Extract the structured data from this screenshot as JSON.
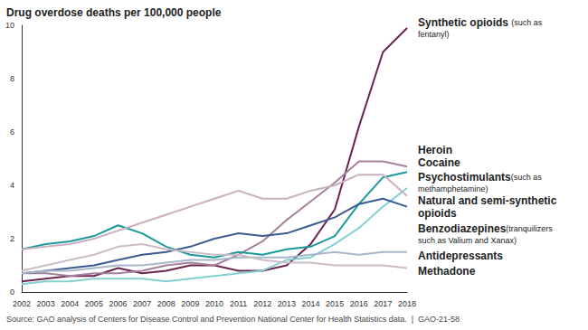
{
  "chart_data": {
    "type": "line",
    "title": "Drug overdose deaths per 100,000 people",
    "source": "Source: GAO analysis of Centers for Disease Control and Prevention National Center for Health Statistics data.  |  GAO-21-58",
    "categories": [
      "2002",
      "2003",
      "2004",
      "2005",
      "2006",
      "2007",
      "2008",
      "2009",
      "2010",
      "2011",
      "2012",
      "2013",
      "2014",
      "2015",
      "2016",
      "2017",
      "2018"
    ],
    "ylim": [
      0,
      10
    ],
    "yticks": [
      0,
      2,
      4,
      6,
      8,
      10
    ],
    "grid": false,
    "series": [
      {
        "name": "Synthetic opioids",
        "note": "(such as fentanyl)",
        "color": "#6b2350",
        "values": [
          0.4,
          0.5,
          0.6,
          0.6,
          0.9,
          0.7,
          0.8,
          1.0,
          1.0,
          0.8,
          0.8,
          1.0,
          1.8,
          3.1,
          6.2,
          9.0,
          9.9
        ]
      },
      {
        "name": "Heroin",
        "color": "#a5829c",
        "values": [
          0.7,
          0.7,
          0.6,
          0.7,
          0.7,
          0.8,
          1.0,
          1.1,
          1.0,
          1.4,
          1.9,
          2.7,
          3.4,
          4.1,
          4.9,
          4.9,
          4.7
        ]
      },
      {
        "name": "Cocaine",
        "color": "#1a9a98",
        "values": [
          1.6,
          1.8,
          1.9,
          2.1,
          2.5,
          2.2,
          1.7,
          1.4,
          1.3,
          1.5,
          1.4,
          1.6,
          1.7,
          2.1,
          3.3,
          4.3,
          4.5
        ]
      },
      {
        "name": "Psychostimulants",
        "note": "(such as methamphetamine)",
        "color": "#84cfd2",
        "values": [
          0.3,
          0.4,
          0.4,
          0.5,
          0.5,
          0.5,
          0.4,
          0.5,
          0.6,
          0.7,
          0.8,
          1.2,
          1.3,
          1.8,
          2.4,
          3.2,
          3.9
        ]
      },
      {
        "name": "Natural and semi-synthetic opioids",
        "color": "#c8b0c1",
        "values": [
          1.6,
          1.7,
          1.8,
          2.0,
          2.3,
          2.6,
          2.9,
          3.2,
          3.5,
          3.8,
          3.5,
          3.5,
          3.8,
          4.0,
          4.4,
          4.4,
          3.6
        ]
      },
      {
        "name": "Benzodiazepines",
        "note": "(tranquilizers such as Valium and Xanax)",
        "color": "#3b5b93",
        "values": [
          0.7,
          0.8,
          0.9,
          1.0,
          1.2,
          1.4,
          1.5,
          1.7,
          2.0,
          2.2,
          2.1,
          2.2,
          2.5,
          2.8,
          3.3,
          3.5,
          3.2
        ]
      },
      {
        "name": "Antidepressants",
        "color": "#a9b6c9",
        "values": [
          0.7,
          0.8,
          0.8,
          0.9,
          1.0,
          1.0,
          1.1,
          1.2,
          1.2,
          1.3,
          1.3,
          1.3,
          1.4,
          1.5,
          1.4,
          1.5,
          1.5
        ]
      },
      {
        "name": "Methadone",
        "color": "#cbbcc7",
        "values": [
          0.8,
          1.0,
          1.2,
          1.4,
          1.7,
          1.8,
          1.6,
          1.5,
          1.4,
          1.4,
          1.2,
          1.1,
          1.1,
          1.0,
          1.0,
          1.0,
          0.9
        ]
      }
    ]
  }
}
